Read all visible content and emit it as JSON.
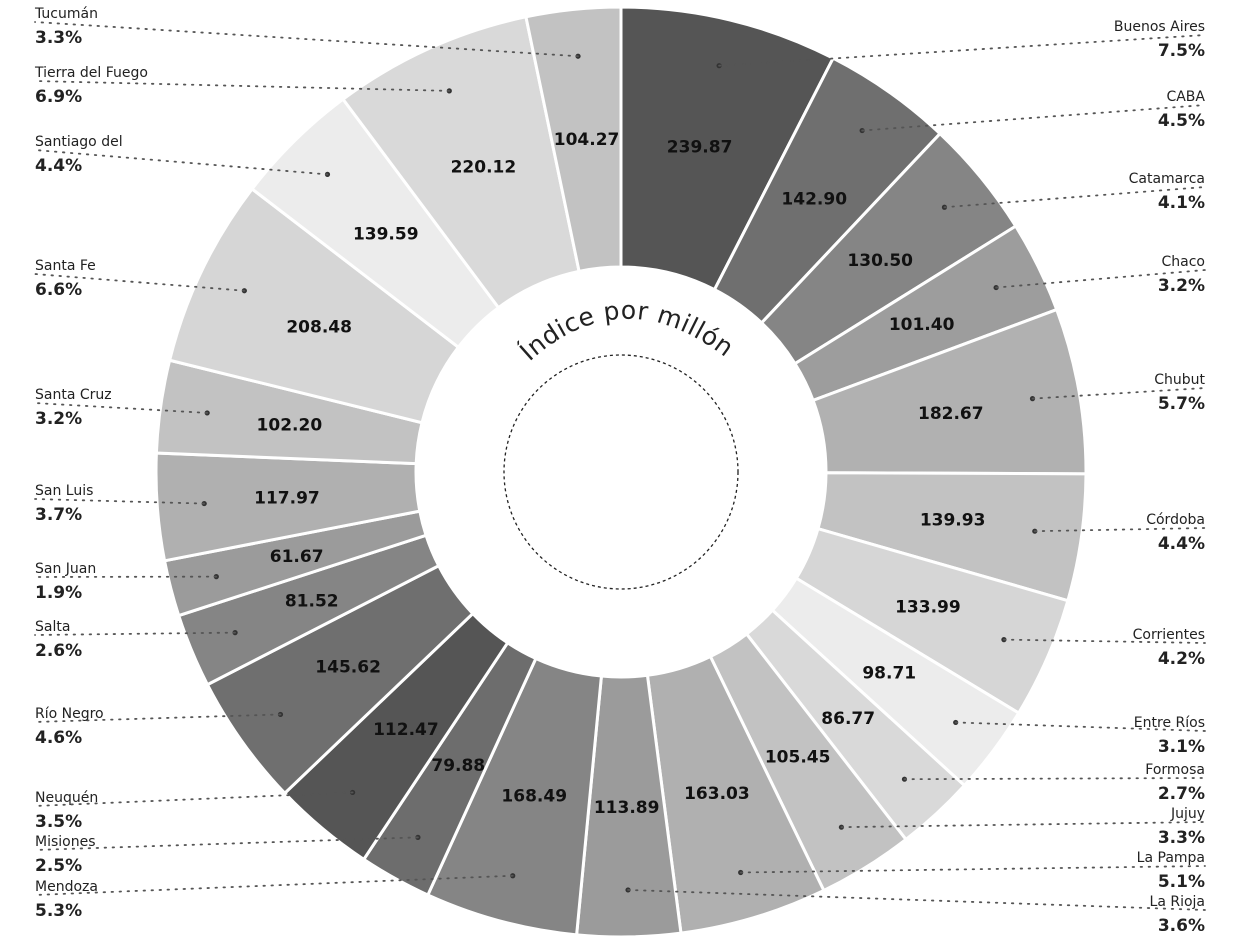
{
  "chart_data": {
    "type": "pie",
    "variant": "donut",
    "title": "Índice por millón",
    "series": [
      {
        "name": "Buenos Aires",
        "value": 239.87,
        "share": "7.5%",
        "color": "#555555"
      },
      {
        "name": "CABA",
        "value": 142.9,
        "share": "4.5%",
        "color": "#6f6f6f"
      },
      {
        "name": "Catamarca",
        "value": 130.5,
        "share": "4.1%",
        "color": "#858585"
      },
      {
        "name": "Chaco",
        "value": 101.4,
        "share": "3.2%",
        "color": "#9d9d9d"
      },
      {
        "name": "Chubut",
        "value": 182.67,
        "share": "5.7%",
        "color": "#b1b1b1"
      },
      {
        "name": "Córdoba",
        "value": 139.93,
        "share": "4.4%",
        "color": "#c2c2c2"
      },
      {
        "name": "Corrientes",
        "value": 133.99,
        "share": "4.2%",
        "color": "#d6d6d6"
      },
      {
        "name": "Entre Ríos",
        "value": 98.71,
        "share": "3.1%",
        "color": "#ececec"
      },
      {
        "name": "Formosa",
        "value": 86.77,
        "share": "2.7%",
        "color": "#d9d9d9"
      },
      {
        "name": "Jujuy",
        "value": 105.45,
        "share": "3.3%",
        "color": "#c2c2c2"
      },
      {
        "name": "La Pampa",
        "value": 163.03,
        "share": "5.1%",
        "color": "#b0b0b0"
      },
      {
        "name": "La Rioja",
        "value": 113.89,
        "share": "3.6%",
        "color": "#9b9b9b"
      },
      {
        "name": "Mendoza",
        "value": 168.49,
        "share": "5.3%",
        "color": "#858585"
      },
      {
        "name": "Misiones",
        "value": 79.88,
        "share": "2.5%",
        "color": "#6d6d6d"
      },
      {
        "name": "Neuquén",
        "value": 112.47,
        "share": "3.5%",
        "color": "#555555"
      },
      {
        "name": "Río Negro",
        "value": 145.62,
        "share": "4.6%",
        "color": "#6f6f6f"
      },
      {
        "name": "Salta",
        "value": 81.52,
        "share": "2.6%",
        "color": "#858585"
      },
      {
        "name": "San Juan",
        "value": 61.67,
        "share": "1.9%",
        "color": "#9b9b9b"
      },
      {
        "name": "San Luis",
        "value": 117.97,
        "share": "3.7%",
        "color": "#b0b0b0"
      },
      {
        "name": "Santa Cruz",
        "value": 102.2,
        "share": "3.2%",
        "color": "#c2c2c2"
      },
      {
        "name": "Santa Fe",
        "value": 208.48,
        "share": "6.6%",
        "color": "#d6d6d6"
      },
      {
        "name": "Santiago del",
        "value": 139.59,
        "share": "4.4%",
        "color": "#ececec"
      },
      {
        "name": "Tierra del Fuego",
        "value": 220.12,
        "share": "6.9%",
        "color": "#d9d9d9"
      },
      {
        "name": "Tucumán",
        "value": 104.27,
        "share": "3.3%",
        "color": "#c2c2c2"
      }
    ]
  }
}
